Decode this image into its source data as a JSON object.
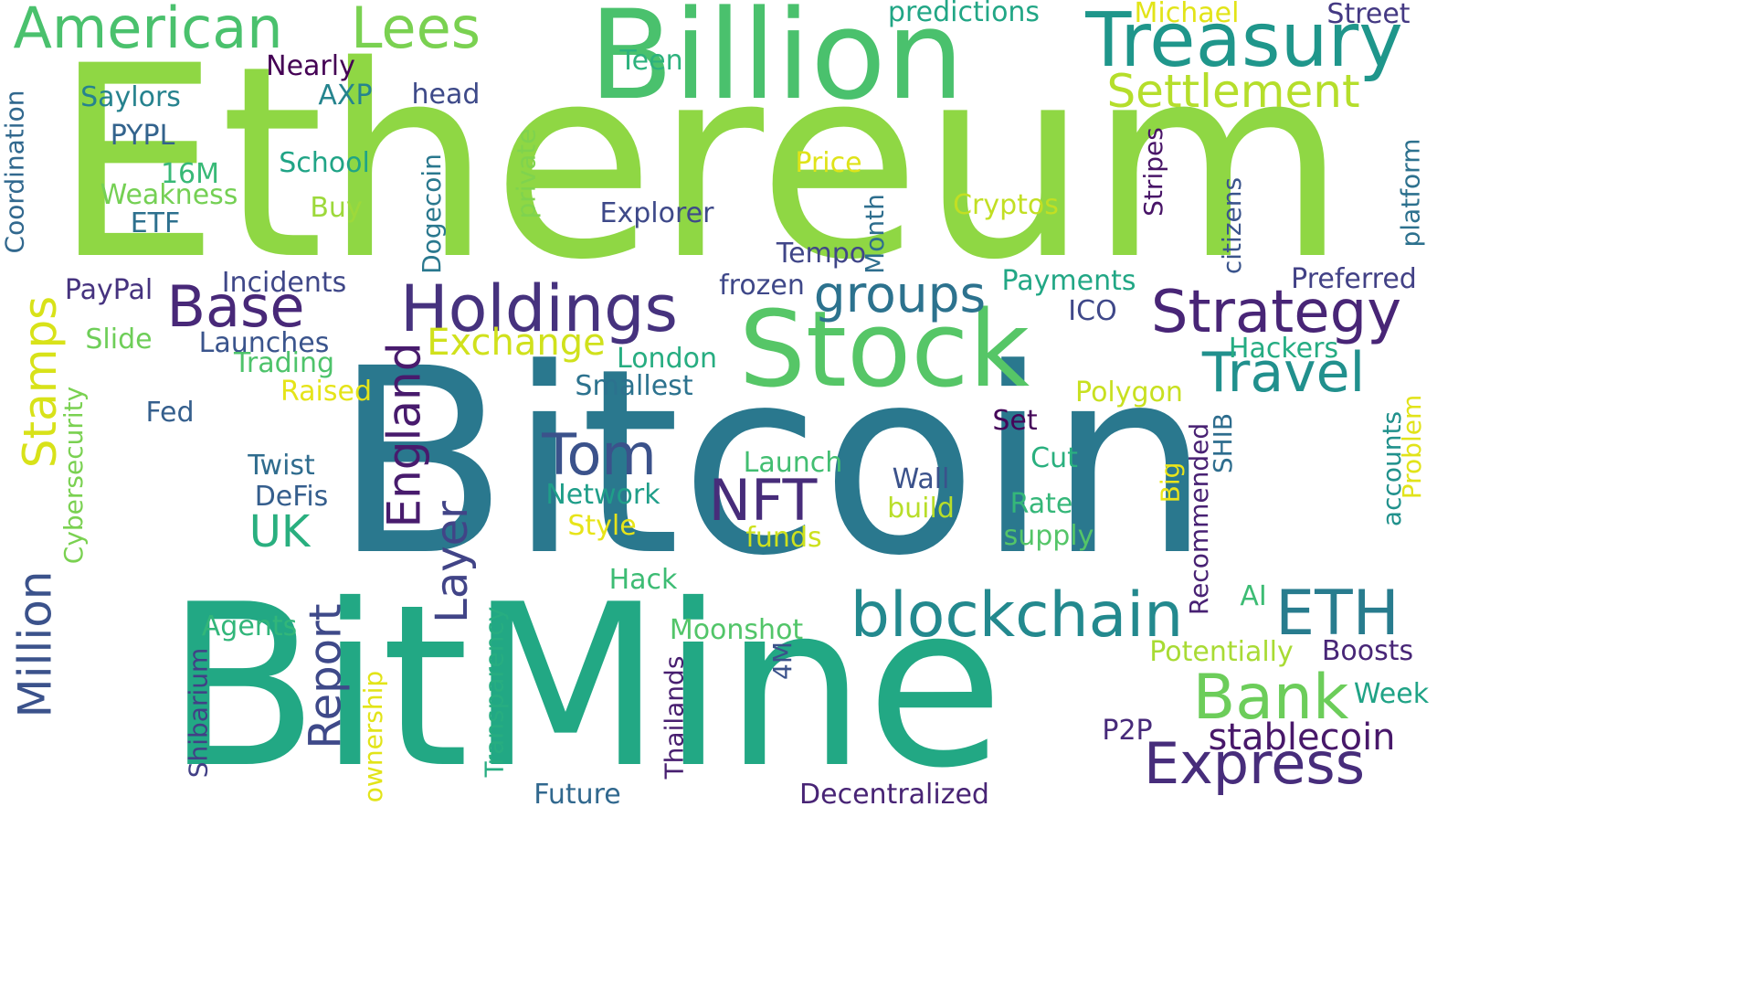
{
  "words": [
    {
      "text": "Ethereum",
      "color": "#8fd744",
      "rot": 0
    },
    {
      "text": "Bitcoin",
      "color": "#2a788e",
      "rot": 0
    },
    {
      "text": "BitMine",
      "color": "#22a884",
      "rot": 0
    },
    {
      "text": "Billion",
      "color": "#4ac16d",
      "rot": 0
    },
    {
      "text": "Stock",
      "color": "#56c667",
      "rot": 0
    },
    {
      "text": "Treasury",
      "color": "#1f968b",
      "rot": 0
    },
    {
      "text": "American",
      "color": "#4ac16d",
      "rot": 0
    },
    {
      "text": "Lees",
      "color": "#7ad151",
      "rot": 0
    },
    {
      "text": "Holdings",
      "color": "#46327e",
      "rot": 0
    },
    {
      "text": "Strategy",
      "color": "#482576",
      "rot": 0
    },
    {
      "text": "blockchain",
      "color": "#23898e",
      "rot": 0
    },
    {
      "text": "Express",
      "color": "#472d7b",
      "rot": 0
    },
    {
      "text": "Bank",
      "color": "#6ccd5a",
      "rot": 0
    },
    {
      "text": "Base",
      "color": "#482878",
      "rot": 0
    },
    {
      "text": "Settlement",
      "color": "#b5de2b",
      "rot": 0
    },
    {
      "text": "Travel",
      "color": "#21908d",
      "rot": 0
    },
    {
      "text": "groups",
      "color": "#2c728e",
      "rot": 0
    },
    {
      "text": "Tom",
      "color": "#3b528b",
      "rot": 0
    },
    {
      "text": "NFT",
      "color": "#472c7a",
      "rot": 0
    },
    {
      "text": "ETH",
      "color": "#287c8e",
      "rot": 0
    },
    {
      "text": "Million",
      "color": "#3b528b",
      "rot": -90
    },
    {
      "text": "Stamps",
      "color": "#d8e219",
      "rot": -90
    },
    {
      "text": "England",
      "color": "#481b6d",
      "rot": -90
    },
    {
      "text": "Layer",
      "color": "#414487",
      "rot": -90
    },
    {
      "text": "Report",
      "color": "#3e4989",
      "rot": -90
    },
    {
      "text": "UK",
      "color": "#29af7f",
      "rot": 0
    },
    {
      "text": "Exchange",
      "color": "#d0e11c",
      "rot": 0
    },
    {
      "text": "stablecoin",
      "color": "#48186a",
      "rot": 0
    },
    {
      "text": "predictions",
      "color": "#21a685",
      "rot": 0
    },
    {
      "text": "Michael",
      "color": "#e2e418",
      "rot": 0
    },
    {
      "text": "Street",
      "color": "#443983",
      "rot": 0
    },
    {
      "text": "Teen",
      "color": "#2db27d",
      "rot": 0
    },
    {
      "text": "Nearly",
      "color": "#440154",
      "rot": 0
    },
    {
      "text": "Saylors",
      "color": "#26828e",
      "rot": 0
    },
    {
      "text": "AXP",
      "color": "#25848e",
      "rot": 0
    },
    {
      "text": "head",
      "color": "#3e4a89",
      "rot": 0
    },
    {
      "text": "PYPL",
      "color": "#33638d",
      "rot": 0
    },
    {
      "text": "School",
      "color": "#20a486",
      "rot": 0
    },
    {
      "text": "Price",
      "color": "#dfe318",
      "rot": 0
    },
    {
      "text": "16M",
      "color": "#38b977",
      "rot": 0
    },
    {
      "text": "Weakness",
      "color": "#75d054",
      "rot": 0
    },
    {
      "text": "Buy",
      "color": "#9dd93b",
      "rot": 0
    },
    {
      "text": "Cryptos",
      "color": "#c2df23",
      "rot": 0
    },
    {
      "text": "Explorer",
      "color": "#3e4989",
      "rot": 0
    },
    {
      "text": "ETF",
      "color": "#2d708e",
      "rot": 0
    },
    {
      "text": "Tempo",
      "color": "#404688",
      "rot": 0
    },
    {
      "text": "Incidents",
      "color": "#3f4788",
      "rot": 0
    },
    {
      "text": "PayPal",
      "color": "#46337f",
      "rot": 0
    },
    {
      "text": "frozen",
      "color": "#3f4889",
      "rot": 0
    },
    {
      "text": "Payments",
      "color": "#22a785",
      "rot": 0
    },
    {
      "text": "Preferred",
      "color": "#424186",
      "rot": 0
    },
    {
      "text": "ICO",
      "color": "#3f4889",
      "rot": 0
    },
    {
      "text": "Slide",
      "color": "#6ece58",
      "rot": 0
    },
    {
      "text": "Launches",
      "color": "#3a548c",
      "rot": 0
    },
    {
      "text": "Trading",
      "color": "#4ec36b",
      "rot": 0
    },
    {
      "text": "London",
      "color": "#27ad81",
      "rot": 0
    },
    {
      "text": "Hackers",
      "color": "#25ac82",
      "rot": 0
    },
    {
      "text": "Raised",
      "color": "#e5e419",
      "rot": 0
    },
    {
      "text": "Smallest",
      "color": "#2c728e",
      "rot": 0
    },
    {
      "text": "Polygon",
      "color": "#c8e020",
      "rot": 0
    },
    {
      "text": "Fed",
      "color": "#355f8d",
      "rot": 0
    },
    {
      "text": "Set",
      "color": "#450559",
      "rot": 0
    },
    {
      "text": "Twist",
      "color": "#2f6c8e",
      "rot": 0
    },
    {
      "text": "Launch",
      "color": "#42be71",
      "rot": 0
    },
    {
      "text": "Cut",
      "color": "#2ab07f",
      "rot": 0
    },
    {
      "text": "DeFis",
      "color": "#355e8d",
      "rot": 0
    },
    {
      "text": "Wall",
      "color": "#3b528b",
      "rot": 0
    },
    {
      "text": "Network",
      "color": "#1f9e89",
      "rot": 0
    },
    {
      "text": "build",
      "color": "#b8de29",
      "rot": 0
    },
    {
      "text": "Rate",
      "color": "#35b779",
      "rot": 0
    },
    {
      "text": "Style",
      "color": "#e7e419",
      "rot": 0
    },
    {
      "text": "funds",
      "color": "#cde11d",
      "rot": 0
    },
    {
      "text": "supply",
      "color": "#54c568",
      "rot": 0
    },
    {
      "text": "Hack",
      "color": "#3dbc74",
      "rot": 0
    },
    {
      "text": "AI",
      "color": "#3dbc74",
      "rot": 0
    },
    {
      "text": "Agents",
      "color": "#32b67a",
      "rot": 0
    },
    {
      "text": "Moonshot",
      "color": "#52c569",
      "rot": 0
    },
    {
      "text": "Potentially",
      "color": "#a8db34",
      "rot": 0
    },
    {
      "text": "Boosts",
      "color": "#482677",
      "rot": 0
    },
    {
      "text": "Week",
      "color": "#20a386",
      "rot": 0
    },
    {
      "text": "P2P",
      "color": "#472a7a",
      "rot": 0
    },
    {
      "text": "Future",
      "color": "#31688e",
      "rot": 0
    },
    {
      "text": "Decentralized",
      "color": "#482475",
      "rot": 0
    },
    {
      "text": "Coordination",
      "color": "#31688e",
      "rot": -90
    },
    {
      "text": "Dogecoin",
      "color": "#2a788e",
      "rot": -90
    },
    {
      "text": "private",
      "color": "#7fd34e",
      "rot": -90
    },
    {
      "text": "Month",
      "color": "#2e6e8e",
      "rot": -90
    },
    {
      "text": "Stripes",
      "color": "#481467",
      "rot": -90
    },
    {
      "text": "citizens",
      "color": "#3a548c",
      "rot": -90
    },
    {
      "text": "platform",
      "color": "#2d718e",
      "rot": -90
    },
    {
      "text": "Cybersecurity",
      "color": "#7ad151",
      "rot": -90
    },
    {
      "text": "Recommended",
      "color": "#482173",
      "rot": -90
    },
    {
      "text": "SHIB",
      "color": "#2e6d8e",
      "rot": -90
    },
    {
      "text": "Big",
      "color": "#eae51a",
      "rot": -90
    },
    {
      "text": "accounts",
      "color": "#21918c",
      "rot": -90
    },
    {
      "text": "Problem",
      "color": "#e1e31a",
      "rot": -90
    },
    {
      "text": "Shibarium",
      "color": "#424086",
      "rot": -90
    },
    {
      "text": "ownership",
      "color": "#e2e418",
      "rot": -90
    },
    {
      "text": "Transparency",
      "color": "#27ad81",
      "rot": -90
    },
    {
      "text": "Thailands",
      "color": "#481f70",
      "rot": -90
    },
    {
      "text": "4M",
      "color": "#3b528b",
      "rot": -90
    }
  ]
}
